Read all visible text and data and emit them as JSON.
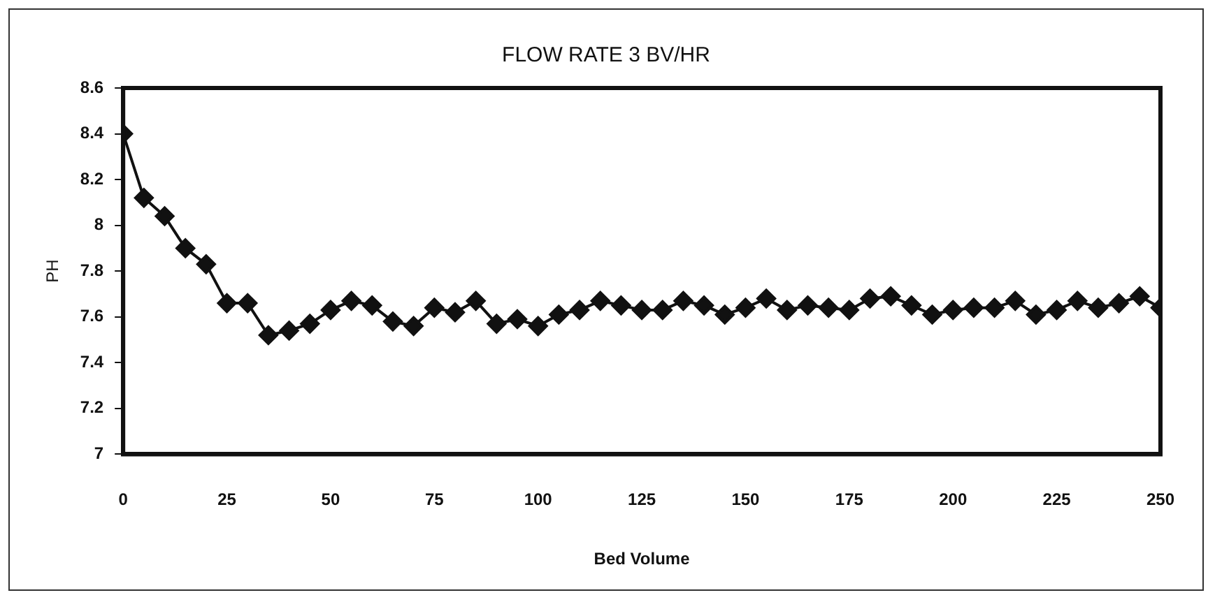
{
  "chart_data": {
    "type": "line",
    "title": "FLOW RATE 3 BV/HR",
    "xlabel": "Bed Volume",
    "ylabel": "PH",
    "x": [
      0,
      5,
      10,
      15,
      20,
      25,
      30,
      35,
      40,
      45,
      50,
      55,
      60,
      65,
      70,
      75,
      80,
      85,
      90,
      95,
      100,
      105,
      110,
      115,
      120,
      125,
      130,
      135,
      140,
      145,
      150,
      155,
      160,
      165,
      170,
      175,
      180,
      185,
      190,
      195,
      200,
      205,
      210,
      215,
      220,
      225,
      230,
      235,
      240,
      245,
      250
    ],
    "series": [
      {
        "color": "#111111",
        "values": [
          8.4,
          8.12,
          8.04,
          7.9,
          7.83,
          7.66,
          7.66,
          7.52,
          7.54,
          7.57,
          7.63,
          7.67,
          7.65,
          7.58,
          7.56,
          7.64,
          7.62,
          7.67,
          7.57,
          7.59,
          7.56,
          7.61,
          7.63,
          7.67,
          7.65,
          7.63,
          7.63,
          7.67,
          7.65,
          7.61,
          7.64,
          7.68,
          7.63,
          7.65,
          7.64,
          7.63,
          7.68,
          7.69,
          7.65,
          7.61,
          7.63,
          7.64,
          7.64,
          7.67,
          7.61,
          7.63,
          7.67,
          7.64,
          7.66,
          7.69,
          7.64
        ]
      }
    ],
    "xlim": [
      0,
      250
    ],
    "xticks": [
      0,
      25,
      50,
      75,
      100,
      125,
      150,
      175,
      200,
      225,
      250
    ],
    "ylim": [
      7,
      8.6
    ],
    "yticks": [
      7,
      7.2,
      7.4,
      7.6,
      7.8,
      8,
      8.2,
      8.4,
      8.6
    ],
    "grid": false,
    "legend": false,
    "marker": "diamond",
    "line_style": "solid"
  }
}
